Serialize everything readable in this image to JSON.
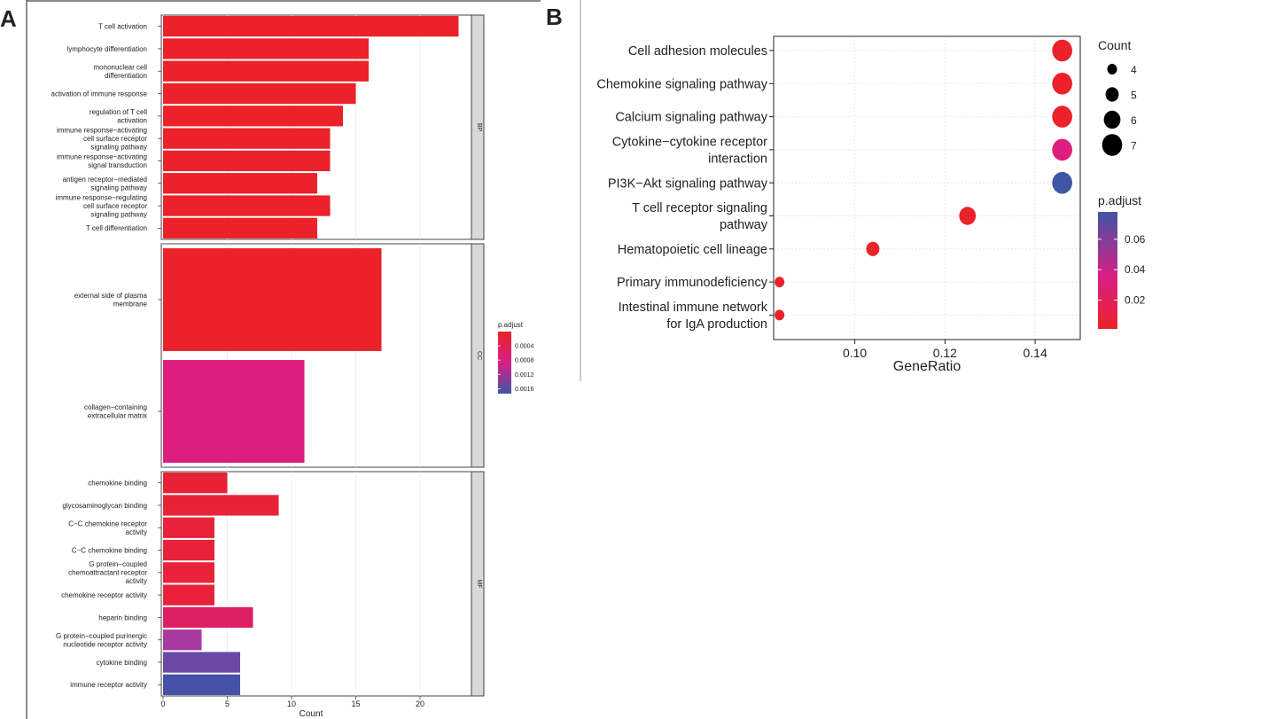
{
  "panels": {
    "a_label": "A",
    "b_label": "B"
  },
  "chart_data": [
    {
      "type": "bar",
      "orientation": "horizontal",
      "title": "",
      "xlabel": "Count",
      "xlim": [
        0,
        24
      ],
      "xticks": [
        0,
        5,
        10,
        15,
        20
      ],
      "color_legend": {
        "title": "p.adjust",
        "ticks": [
          "0.0004",
          "0.0008",
          "0.0012",
          "0.0016"
        ],
        "range": [
          0.0001,
          0.0018
        ]
      },
      "facets": [
        {
          "name": "BP",
          "categories": [
            "T cell activation",
            "lymphocyte differentiation",
            "mononuclear cell differentiation",
            "activation of immune response",
            "regulation of T cell activation",
            "immune response−activating cell surface receptor signaling pathway",
            "immune response−activating signal transduction",
            "antigen receptor−mediated signaling pathway",
            "immune response−regulating cell surface receptor signaling pathway",
            "T cell differentiation"
          ],
          "label_lines": [
            [
              "T cell activation"
            ],
            [
              "lymphocyte differentiation"
            ],
            [
              "mononuclear cell",
              "differentiation"
            ],
            [
              "activation of immune response"
            ],
            [
              "regulation of T cell",
              "activation"
            ],
            [
              "immune response−activating",
              "cell surface receptor",
              "signaling pathway"
            ],
            [
              "immune response−activating",
              "signal transduction"
            ],
            [
              "antigen receptor−mediated",
              "signaling pathway"
            ],
            [
              "immune response−regulating",
              "cell surface receptor",
              "signaling pathway"
            ],
            [
              "T cell differentiation"
            ]
          ],
          "values": [
            23,
            16,
            16,
            15,
            14,
            13,
            13,
            12,
            13,
            12
          ],
          "colors": [
            "#eb2229",
            "#eb2229",
            "#eb2229",
            "#eb2229",
            "#eb2229",
            "#eb2229",
            "#eb2229",
            "#eb2229",
            "#eb2229",
            "#eb2229"
          ]
        },
        {
          "name": "CC",
          "categories": [
            "external side of plasma membrane",
            "collagen−containing extracellular matrix"
          ],
          "label_lines": [
            [
              "external side of plasma",
              "membrane"
            ],
            [
              "collagen−containing",
              "extracellular matrix"
            ]
          ],
          "values": [
            17,
            11
          ],
          "colors": [
            "#eb2229",
            "#dd1e80"
          ]
        },
        {
          "name": "MF",
          "categories": [
            "chemokine binding",
            "glycosaminoglycan binding",
            "C−C chemokine receptor activity",
            "C−C chemokine binding",
            "G protein−coupled chemoattractant receptor activity",
            "chemokine receptor activity",
            "heparin binding",
            "G protein−coupled purinergic nucleotide receptor activity",
            "cytokine binding",
            "immune receptor activity"
          ],
          "label_lines": [
            [
              "chemokine binding"
            ],
            [
              "glycosaminoglycan binding"
            ],
            [
              "C−C chemokine receptor",
              "activity"
            ],
            [
              "C−C chemokine binding"
            ],
            [
              "G protein−coupled",
              "chemoattractant receptor",
              "activity"
            ],
            [
              "chemokine receptor activity"
            ],
            [
              "heparin binding"
            ],
            [
              "G protein−coupled purinergic",
              "nucleotide receptor activity"
            ],
            [
              "cytokine binding"
            ],
            [
              "immune receptor activity"
            ]
          ],
          "values": [
            5,
            9,
            4,
            4,
            4,
            4,
            7,
            3,
            6,
            6
          ],
          "colors": [
            "#e82235",
            "#e82237",
            "#e8223a",
            "#e8223a",
            "#e8223a",
            "#e8223a",
            "#de1f63",
            "#a83a9f",
            "#6a4aa4",
            "#4451a6"
          ]
        }
      ]
    },
    {
      "type": "scatter",
      "title": "",
      "xlabel": "GeneRatio",
      "xlim": [
        0.082,
        0.15
      ],
      "xticks": [
        0.1,
        0.12,
        0.14
      ],
      "xtick_labels": [
        "0.10",
        "0.12",
        "0.14"
      ],
      "categories": [
        "Cell adhesion molecules",
        "Chemokine signaling pathway",
        "Calcium signaling pathway",
        "Cytokine−cytokine receptor interaction",
        "PI3K−Akt signaling pathway",
        "T cell receptor signaling pathway",
        "Hematopoietic cell lineage",
        "Primary immunodeficiency",
        "Intestinal immune network for IgA production"
      ],
      "label_lines": [
        [
          "Cell adhesion molecules"
        ],
        [
          "Chemokine signaling pathway"
        ],
        [
          "Calcium signaling pathway"
        ],
        [
          "Cytokine−cytokine receptor",
          "interaction"
        ],
        [
          "PI3K−Akt signaling pathway"
        ],
        [
          "T cell receptor signaling",
          "pathway"
        ],
        [
          "Hematopoietic cell lineage"
        ],
        [
          "Primary immunodeficiency"
        ],
        [
          "Intestinal immune network",
          "for IgA production"
        ]
      ],
      "gene_ratio": [
        0.146,
        0.146,
        0.146,
        0.146,
        0.146,
        0.125,
        0.104,
        0.0833,
        0.0833
      ],
      "count": [
        7,
        7,
        7,
        7,
        7,
        6,
        5,
        4,
        4
      ],
      "colors": [
        "#eb2229",
        "#eb2229",
        "#eb2229",
        "#dd1e80",
        "#3f55a6",
        "#eb2229",
        "#eb2229",
        "#eb2229",
        "#eb2229"
      ],
      "size_legend": {
        "title": "Count",
        "values": [
          4,
          5,
          6,
          7
        ],
        "labels": [
          "4",
          "5",
          "6",
          "7"
        ]
      },
      "color_legend": {
        "title": "p.adjust",
        "ticks": [
          "0.06",
          "0.04",
          "0.02"
        ],
        "tick_values": [
          0.06,
          0.04,
          0.02
        ],
        "range": [
          0.001,
          0.078
        ]
      }
    }
  ]
}
